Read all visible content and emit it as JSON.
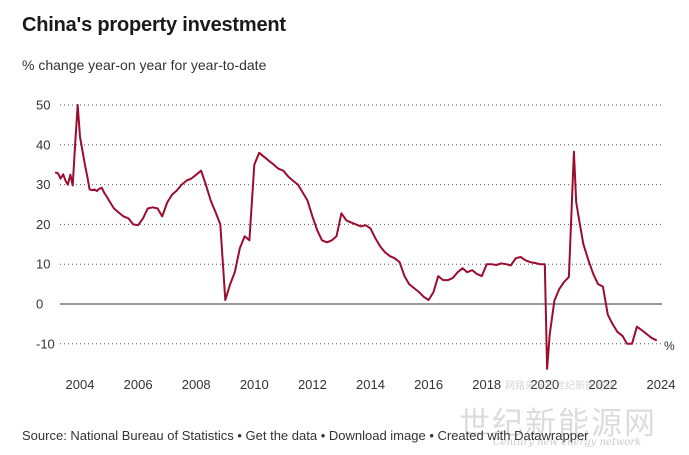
{
  "header": {
    "title": "China's property investment",
    "subtitle": "% change year-on year for year-to-date"
  },
  "footer": {
    "source": "Source: National Bureau of Statistics",
    "separator": " • ",
    "get_data": "Get the data",
    "download_image": "Download image",
    "created_with": "Created with Datawrapper"
  },
  "watermark": {
    "main": "世纪新能源网",
    "sub": "Century new energy network",
    "small": "网路来源与世纪新能源网"
  },
  "colors": {
    "line": "#9b0d2f",
    "grid": "#222222",
    "text": "#333333"
  },
  "chart_data": {
    "type": "line",
    "title": "China's property investment",
    "subtitle": "% change year-on year for year-to-date",
    "unit_label": "%",
    "y_ticks": [
      50,
      40,
      30,
      20,
      10,
      0,
      -10
    ],
    "x_ticks": [
      "2004",
      "2006",
      "2008",
      "2010",
      "2012",
      "2014",
      "2016",
      "2018",
      "2020",
      "2022",
      "2024"
    ],
    "x_range": [
      2003.8,
      2024.0
    ],
    "ylim": [
      -15,
      52
    ],
    "grid": "horizontal-dotted",
    "series": [
      {
        "x": [
          2003.17,
          2003.25,
          2003.33,
          2003.42,
          2003.5,
          2003.58,
          2003.67,
          2003.75,
          2003.83,
          2003.92,
          2004.0,
          2004.17,
          2004.25,
          2004.33,
          2004.42,
          2004.5,
          2004.58,
          2004.67,
          2004.75,
          2004.83,
          2004.92,
          2005.0,
          2005.17,
          2005.33,
          2005.5,
          2005.67,
          2005.83,
          2006.0,
          2006.17,
          2006.33,
          2006.5,
          2006.67,
          2006.83,
          2007.0,
          2007.17,
          2007.33,
          2007.5,
          2007.67,
          2007.83,
          2008.0,
          2008.17,
          2008.33,
          2008.5,
          2008.67,
          2008.83,
          2009.0,
          2009.17,
          2009.33,
          2009.5,
          2009.67,
          2009.83,
          2010.0,
          2010.17,
          2010.33,
          2010.5,
          2010.67,
          2010.83,
          2011.0,
          2011.17,
          2011.33,
          2011.5,
          2011.67,
          2011.83,
          2012.0,
          2012.17,
          2012.33,
          2012.5,
          2012.67,
          2012.83,
          2013.0,
          2013.17,
          2013.33,
          2013.5,
          2013.67,
          2013.83,
          2014.0,
          2014.17,
          2014.33,
          2014.5,
          2014.67,
          2014.83,
          2015.0,
          2015.17,
          2015.33,
          2015.5,
          2015.67,
          2015.83,
          2016.0,
          2016.17,
          2016.33,
          2016.5,
          2016.67,
          2016.83,
          2017.0,
          2017.17,
          2017.33,
          2017.5,
          2017.67,
          2017.83,
          2018.0,
          2018.17,
          2018.33,
          2018.5,
          2018.67,
          2018.83,
          2019.0,
          2019.17,
          2019.33,
          2019.5,
          2019.67,
          2019.83,
          2020.0,
          2020.08,
          2020.17,
          2020.25,
          2020.33,
          2020.5,
          2020.67,
          2020.83,
          2021.0,
          2021.08,
          2021.17,
          2021.33,
          2021.5,
          2021.67,
          2021.83,
          2022.0,
          2022.17,
          2022.33,
          2022.5,
          2022.67,
          2022.83,
          2023.0,
          2023.17,
          2023.33,
          2023.5,
          2023.67,
          2023.83
        ],
        "values": [
          33.0,
          32.8,
          31.5,
          32.6,
          31.0,
          30.0,
          32.5,
          29.8,
          40.0,
          50.0,
          42.0,
          35.0,
          32.0,
          28.8,
          28.6,
          28.8,
          28.4,
          29.0,
          29.2,
          28.0,
          27.0,
          26.0,
          24.0,
          23.0,
          22.0,
          21.5,
          20.0,
          19.8,
          21.5,
          24.0,
          24.3,
          24.0,
          22.0,
          25.5,
          27.5,
          28.5,
          30.0,
          31.0,
          31.5,
          32.5,
          33.5,
          30.0,
          26.0,
          23.0,
          20.0,
          1.0,
          5.0,
          8.0,
          14.0,
          17.0,
          16.0,
          35.0,
          38.0,
          37.0,
          36.0,
          35.0,
          34.0,
          33.5,
          32.0,
          31.0,
          30.0,
          28.0,
          26.0,
          22.0,
          18.5,
          16.0,
          15.5,
          16.0,
          17.0,
          22.8,
          21.0,
          20.5,
          20.0,
          19.5,
          19.8,
          19.0,
          16.5,
          14.5,
          13.0,
          12.0,
          11.5,
          10.5,
          7.0,
          5.0,
          4.0,
          3.0,
          1.8,
          1.0,
          3.0,
          7.0,
          6.0,
          6.0,
          6.5,
          8.0,
          9.0,
          8.0,
          8.5,
          7.5,
          7.0,
          10.0,
          10.0,
          9.8,
          10.2,
          10.0,
          9.7,
          11.5,
          11.8,
          11.0,
          10.5,
          10.3,
          10.0,
          10.0,
          -16.3,
          -7.7,
          -3.3,
          0.8,
          3.8,
          5.6,
          6.8,
          38.3,
          25.6,
          21.6,
          15.0,
          11.0,
          7.5,
          5.0,
          4.4,
          -2.7,
          -5.0,
          -7.0,
          -8.0,
          -10.0,
          -10.0,
          -5.7,
          -6.5,
          -7.5,
          -8.5,
          -9.1
        ]
      }
    ]
  }
}
